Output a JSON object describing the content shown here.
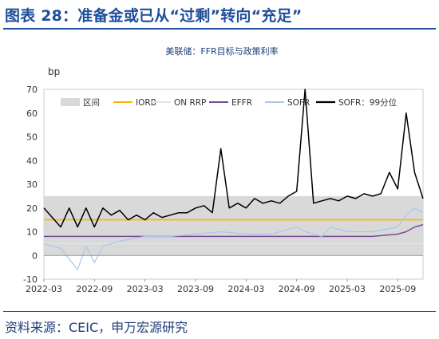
{
  "header": {
    "title": "图表 28：准备金或已从“过剩”转向“充足”"
  },
  "chart_data": {
    "type": "line",
    "title": "美联储：FFR目标与政策利率",
    "ylabel": "bp",
    "ylim": [
      -10,
      70
    ],
    "y_ticks": [
      "-10",
      "0",
      "10",
      "20",
      "30",
      "40",
      "50",
      "60",
      "70"
    ],
    "x_ticks": [
      "2022-03",
      "2022-09",
      "2023-03",
      "2023-09",
      "2024-03",
      "2024-09",
      "2025-03",
      "2025-09"
    ],
    "legend_position": "top",
    "legend": [
      {
        "key": "band",
        "label": "区间",
        "color": "#d9d9d9"
      },
      {
        "key": "iorb",
        "label": "IORB",
        "color": "#f5b800"
      },
      {
        "key": "onrrp",
        "label": "ON RRP",
        "color": "#dfe4ee"
      },
      {
        "key": "effr",
        "label": "EFFR",
        "color": "#7b4a96"
      },
      {
        "key": "sofr",
        "label": "SOFR",
        "color": "#a9c8e8"
      },
      {
        "key": "sofr99",
        "label": "SOFR：99分位",
        "color": "#000000"
      }
    ],
    "series": {
      "band": {
        "x": [
          "2022-03",
          "2025-12"
        ],
        "lower": [
          0,
          0
        ],
        "upper": [
          25,
          25
        ]
      },
      "iorb": {
        "x": [
          "2022-03",
          "2025-12"
        ],
        "values": [
          15,
          15
        ]
      },
      "onrrp": {
        "x": [
          "2022-03",
          "2025-12"
        ],
        "values": [
          5,
          5
        ]
      },
      "effr": {
        "x": [
          "2022-03",
          "2022-06",
          "2022-09",
          "2023-03",
          "2023-07",
          "2023-09",
          "2024-03",
          "2024-09",
          "2024-12",
          "2025-03",
          "2025-06",
          "2025-09",
          "2025-10",
          "2025-11",
          "2025-12"
        ],
        "values": [
          8,
          8,
          8,
          8,
          8,
          8,
          8,
          8,
          8,
          8,
          8,
          9,
          10,
          12,
          13
        ]
      },
      "sofr": {
        "x": [
          "2022-03",
          "2022-05",
          "2022-07",
          "2022-08",
          "2022-09",
          "2022-10",
          "2022-11",
          "2022-12",
          "2023-03",
          "2023-06",
          "2023-09",
          "2023-12",
          "2024-03",
          "2024-06",
          "2024-09",
          "2024-10",
          "2024-12",
          "2025-01",
          "2025-03",
          "2025-06",
          "2025-09",
          "2025-10",
          "2025-11",
          "2025-12"
        ],
        "values": [
          5,
          3,
          -6,
          4,
          -3,
          4,
          5,
          6,
          8,
          8,
          9,
          10,
          9,
          9,
          12,
          10,
          8,
          12,
          10,
          10,
          12,
          17,
          20,
          18
        ]
      },
      "sofr99": {
        "x": [
          "2022-03",
          "2022-05",
          "2022-06",
          "2022-07",
          "2022-08",
          "2022-09",
          "2022-10",
          "2022-11",
          "2022-12",
          "2023-01",
          "2023-02",
          "2023-03",
          "2023-04",
          "2023-05",
          "2023-06",
          "2023-07",
          "2023-08",
          "2023-09",
          "2023-10",
          "2023-11",
          "2023-12",
          "2024-01",
          "2024-02",
          "2024-03",
          "2024-04",
          "2024-05",
          "2024-06",
          "2024-07",
          "2024-08",
          "2024-09",
          "2024-10",
          "2024-11",
          "2024-12",
          "2025-01",
          "2025-02",
          "2025-03",
          "2025-04",
          "2025-05",
          "2025-06",
          "2025-07",
          "2025-08",
          "2025-09",
          "2025-10",
          "2025-11",
          "2025-12"
        ],
        "values": [
          20,
          12,
          20,
          12,
          20,
          12,
          20,
          17,
          19,
          15,
          17,
          15,
          18,
          16,
          17,
          18,
          18,
          20,
          21,
          18,
          45,
          20,
          22,
          20,
          24,
          22,
          23,
          22,
          25,
          27,
          70,
          22,
          23,
          24,
          23,
          25,
          24,
          26,
          25,
          26,
          35,
          28,
          60,
          35,
          24
        ]
      }
    }
  },
  "footer": {
    "source": "资料来源：CEIC，申万宏源研究"
  }
}
